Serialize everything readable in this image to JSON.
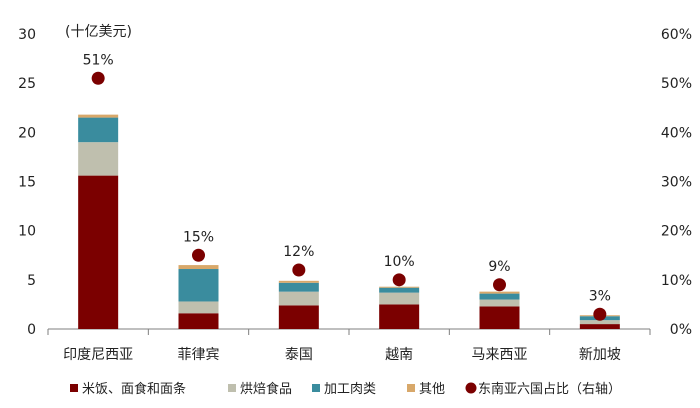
{
  "chart_data": {
    "type": "bar",
    "stacked": true,
    "unit_label": "(十亿美元)",
    "categories": [
      "印度尼西亚",
      "菲律宾",
      "泰国",
      "越南",
      "马来西亚",
      "新加坡"
    ],
    "series": [
      {
        "name": "米饭、面食和面条",
        "color": "#7b0000",
        "values": [
          15.6,
          1.6,
          2.4,
          2.5,
          2.3,
          0.5
        ]
      },
      {
        "name": "烘焙食品",
        "color": "#bfbfae",
        "values": [
          3.4,
          1.2,
          1.4,
          1.2,
          0.7,
          0.4
        ]
      },
      {
        "name": "加工肉类",
        "color": "#3a8c9e",
        "values": [
          2.5,
          3.3,
          0.9,
          0.5,
          0.6,
          0.4
        ]
      },
      {
        "name": "其他",
        "color": "#d8a86a",
        "values": [
          0.3,
          0.4,
          0.2,
          0.1,
          0.2,
          0.1
        ]
      }
    ],
    "share_series": {
      "name": "东南亚六国占比（右轴）",
      "color": "#7b0000",
      "values": [
        51,
        15,
        12,
        10,
        9,
        3
      ],
      "labels": [
        "51%",
        "15%",
        "12%",
        "10%",
        "9%",
        "3%"
      ]
    },
    "y_left": {
      "min": 0,
      "max": 30,
      "ticks": [
        "0",
        "5",
        "10",
        "15",
        "20",
        "25",
        "30"
      ]
    },
    "y_right": {
      "min": 0,
      "max": 60,
      "ticks": [
        "0%",
        "10%",
        "20%",
        "30%",
        "40%",
        "50%",
        "60%"
      ]
    },
    "legend_position": "bottom",
    "grid": false
  }
}
